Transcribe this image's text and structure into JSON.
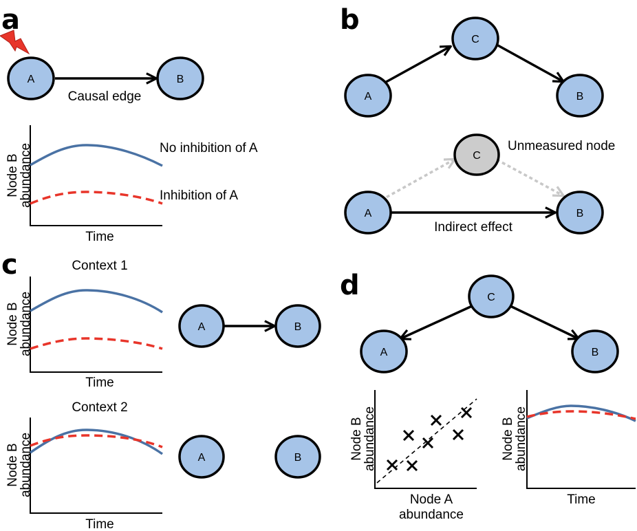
{
  "panels": {
    "a": {
      "letter": "a",
      "node_a": "A",
      "node_b": "B",
      "edge_label": "Causal edge",
      "icon": "lightning-bolt-icon",
      "plot": {
        "ylabel_line1": "Node B",
        "ylabel_line2": "abundance",
        "xlabel": "Time",
        "blue_label": "No inhibition of A",
        "red_label": "Inhibition of A"
      }
    },
    "b": {
      "letter": "b",
      "top": {
        "node_a": "A",
        "node_b": "B",
        "node_c": "C"
      },
      "bottom": {
        "node_a": "A",
        "node_b": "B",
        "node_c": "C",
        "unmeasured_label": "Unmeasured node",
        "edge_label": "Indirect effect"
      }
    },
    "c": {
      "letter": "c",
      "context1": {
        "title": "Context 1",
        "ylabel_line1": "Node B",
        "ylabel_line2": "abundance",
        "xlabel": "Time",
        "node_a": "A",
        "node_b": "B"
      },
      "context2": {
        "title": "Context 2",
        "ylabel_line1": "Node B",
        "ylabel_line2": "abundance",
        "xlabel": "Time",
        "node_a": "A",
        "node_b": "B"
      }
    },
    "d": {
      "letter": "d",
      "node_a": "A",
      "node_b": "B",
      "node_c": "C",
      "scatter": {
        "ylabel_line1": "Node B",
        "ylabel_line2": "abundance",
        "xlabel_line1": "Node A",
        "xlabel_line2": "abundance"
      },
      "timeplot": {
        "ylabel_line1": "Node B",
        "ylabel_line2": "abundance",
        "xlabel": "Time"
      }
    }
  },
  "colors": {
    "node_fill": "#a6c4e8",
    "unmeasured_fill": "#cccccc",
    "blue_curve": "#4a72a4",
    "red_curve": "#e8352a"
  }
}
